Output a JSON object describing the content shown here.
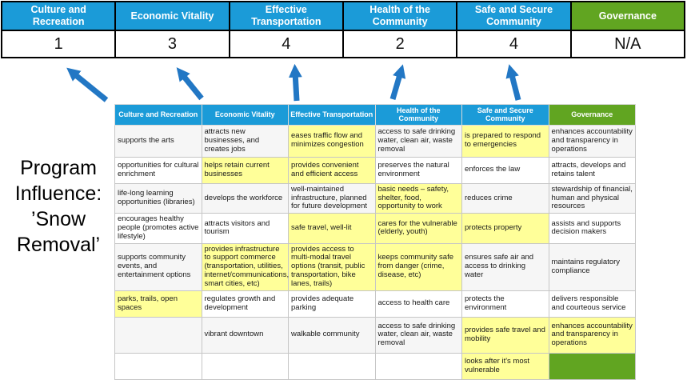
{
  "colors": {
    "header_blue": "#1B9BD8",
    "header_green": "#61A521",
    "highlight": "#FFFF99",
    "arrow_blue": "#2277C4"
  },
  "program": {
    "lines": [
      "Program",
      "Influence:",
      "’Snow",
      "Removal’"
    ]
  },
  "summary": {
    "columns": [
      {
        "label": "Culture and Recreation",
        "score": "1",
        "color": "blue"
      },
      {
        "label": "Economic Vitality",
        "score": "3",
        "color": "blue"
      },
      {
        "label": "Effective Transportation",
        "score": "4",
        "color": "blue"
      },
      {
        "label": "Health of the Community",
        "score": "2",
        "color": "blue"
      },
      {
        "label": "Safe and Secure Community",
        "score": "4",
        "color": "blue"
      },
      {
        "label": "Governance",
        "score": "N/A",
        "color": "green"
      }
    ]
  },
  "matrix": {
    "headers": [
      {
        "label": "Culture and Recreation",
        "color": "blue"
      },
      {
        "label": "Economic Vitality",
        "color": "blue"
      },
      {
        "label": "Effective Transportation",
        "color": "blue"
      },
      {
        "label": "Health of the Community",
        "color": "blue"
      },
      {
        "label": "Safe and Secure Community",
        "color": "blue"
      },
      {
        "label": "Governance",
        "color": "green"
      }
    ],
    "rows": [
      [
        {
          "t": "supports the arts",
          "hl": false
        },
        {
          "t": "attracts new businesses, and creates jobs",
          "hl": false
        },
        {
          "t": "eases traffic flow and minimizes congestion",
          "hl": true
        },
        {
          "t": "access to safe drinking water, clean air, waste removal",
          "hl": false
        },
        {
          "t": "is prepared to respond to emergencies",
          "hl": true
        },
        {
          "t": "enhances accountability and transparency in operations",
          "hl": false
        }
      ],
      [
        {
          "t": "opportunities for cultural enrichment",
          "hl": false
        },
        {
          "t": "helps retain current businesses",
          "hl": true
        },
        {
          "t": "provides convenient and efficient access",
          "hl": true
        },
        {
          "t": "preserves the natural environment",
          "hl": false
        },
        {
          "t": "enforces the law",
          "hl": false
        },
        {
          "t": "attracts, develops and retains talent",
          "hl": false
        }
      ],
      [
        {
          "t": "life-long learning opportunities (libraries)",
          "hl": false
        },
        {
          "t": "develops the workforce",
          "hl": false
        },
        {
          "t": "well-maintained infrastructure, planned for future development",
          "hl": false
        },
        {
          "t": "basic needs – safety, shelter, food, opportunity to work",
          "hl": true
        },
        {
          "t": "reduces crime",
          "hl": false
        },
        {
          "t": "stewardship of financial, human and physical resources",
          "hl": false
        }
      ],
      [
        {
          "t": "encourages healthy people (promotes active lifestyle)",
          "hl": false
        },
        {
          "t": "attracts visitors and tourism",
          "hl": false
        },
        {
          "t": "safe travel, well-lit",
          "hl": true
        },
        {
          "t": "cares for the vulnerable (elderly, youth)",
          "hl": true
        },
        {
          "t": "protects property",
          "hl": true
        },
        {
          "t": "assists and supports decision makers",
          "hl": false
        }
      ],
      [
        {
          "t": "supports community events, and entertainment options",
          "hl": false
        },
        {
          "t": "provides infrastructure to support commerce (transportation, utilities, internet/communications, smart cities, etc)",
          "hl": true
        },
        {
          "t": "provides access to multi-modal travel options (transit, public transportation, bike lanes, trails)",
          "hl": true
        },
        {
          "t": "keeps community safe from danger (crime, disease, etc)",
          "hl": true
        },
        {
          "t": "ensures safe air and access to drinking water",
          "hl": false
        },
        {
          "t": "maintains regulatory compliance",
          "hl": false
        }
      ],
      [
        {
          "t": "parks, trails, open spaces",
          "hl": true
        },
        {
          "t": "regulates growth and development",
          "hl": false
        },
        {
          "t": "provides adequate parking",
          "hl": false
        },
        {
          "t": "access to health care",
          "hl": false
        },
        {
          "t": "protects the environment",
          "hl": false
        },
        {
          "t": "delivers responsible and courteous service",
          "hl": false
        }
      ],
      [
        {
          "t": "",
          "hl": false
        },
        {
          "t": "vibrant downtown",
          "hl": false
        },
        {
          "t": "walkable community",
          "hl": false
        },
        {
          "t": "access to safe drinking water, clean air, waste removal",
          "hl": false
        },
        {
          "t": "provides safe travel and mobility",
          "hl": true
        },
        {
          "t": "enhances accountability and transparency in operations",
          "hl": true
        }
      ],
      [
        {
          "t": "",
          "hl": false
        },
        {
          "t": "",
          "hl": false
        },
        {
          "t": "",
          "hl": false
        },
        {
          "t": "",
          "hl": false
        },
        {
          "t": "looks after it's most vulnerable",
          "hl": true
        },
        {
          "t": "",
          "hl": false,
          "green": true
        }
      ]
    ]
  }
}
